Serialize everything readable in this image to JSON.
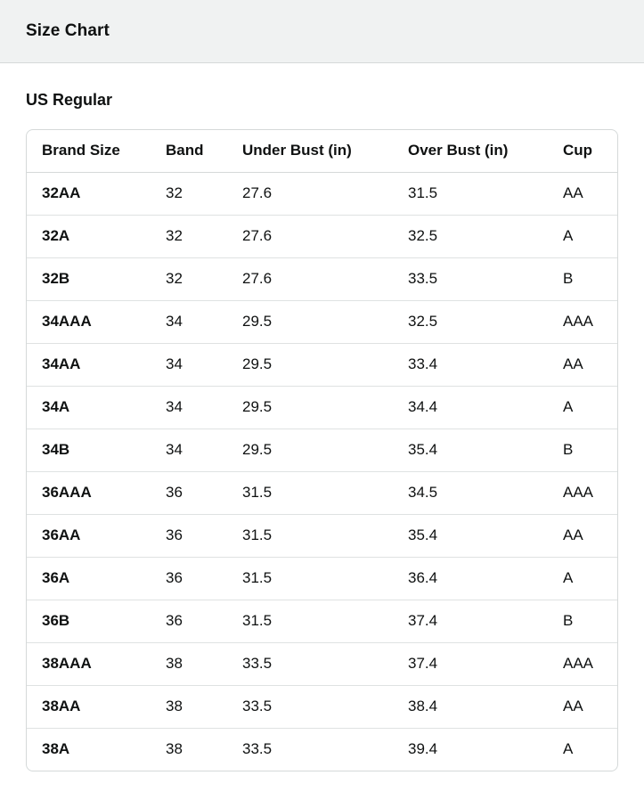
{
  "header": {
    "title": "Size Chart"
  },
  "section": {
    "title": "US Regular"
  },
  "table": {
    "columns": [
      "Brand Size",
      "Band",
      "Under Bust (in)",
      "Over Bust (in)",
      "Cup"
    ],
    "column_keys": [
      "brand-size",
      "band",
      "under-bust",
      "over-bust",
      "cup"
    ],
    "rows": [
      [
        "32AA",
        "32",
        "27.6",
        "31.5",
        "AA"
      ],
      [
        "32A",
        "32",
        "27.6",
        "32.5",
        "A"
      ],
      [
        "32B",
        "32",
        "27.6",
        "33.5",
        "B"
      ],
      [
        "34AAA",
        "34",
        "29.5",
        "32.5",
        "AAA"
      ],
      [
        "34AA",
        "34",
        "29.5",
        "33.4",
        "AA"
      ],
      [
        "34A",
        "34",
        "29.5",
        "34.4",
        "A"
      ],
      [
        "34B",
        "34",
        "29.5",
        "35.4",
        "B"
      ],
      [
        "36AAA",
        "36",
        "31.5",
        "34.5",
        "AAA"
      ],
      [
        "36AA",
        "36",
        "31.5",
        "35.4",
        "AA"
      ],
      [
        "36A",
        "36",
        "31.5",
        "36.4",
        "A"
      ],
      [
        "36B",
        "36",
        "31.5",
        "37.4",
        "B"
      ],
      [
        "38AAA",
        "38",
        "33.5",
        "37.4",
        "AAA"
      ],
      [
        "38AA",
        "38",
        "33.5",
        "38.4",
        "AA"
      ],
      [
        "38A",
        "38",
        "33.5",
        "39.4",
        "A"
      ]
    ]
  },
  "colors": {
    "page_bg": "#ffffff",
    "header_bar_bg": "#f0f2f2",
    "border": "#d5d9d9",
    "row_divider": "#dfe2e2",
    "text": "#0f1111"
  }
}
